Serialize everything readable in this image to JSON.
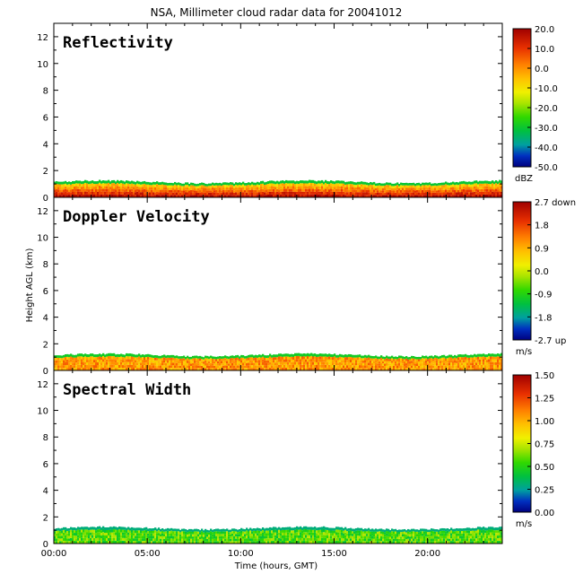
{
  "figure": {
    "title": "NSA, Millimeter cloud radar data for 20041012",
    "xlabel": "Time (hours, GMT)",
    "ylabel": "Height AGL (km)"
  },
  "chart_data": [
    {
      "type": "heatmap",
      "title": "Reflectivity",
      "ylabel": "Height AGL (km)",
      "xlabel": "",
      "x_range_hours": [
        0,
        24
      ],
      "ylim": [
        0,
        13
      ],
      "y_ticks": [
        "0",
        "2",
        "4",
        "6",
        "8",
        "10",
        "12"
      ],
      "x_ticks": [],
      "echo_top_km": 1.3,
      "colorbar": {
        "min": -50,
        "max": 20,
        "ticks": [
          "20.0",
          "10.0",
          "0.0",
          "-10.0",
          "-20.0",
          "-30.0",
          "-40.0",
          "-50.0"
        ],
        "unit": "dBZ"
      }
    },
    {
      "type": "heatmap",
      "title": "Doppler Velocity",
      "ylabel": "Height AGL (km)",
      "xlabel": "",
      "x_range_hours": [
        0,
        24
      ],
      "ylim": [
        0,
        13
      ],
      "y_ticks": [
        "0",
        "2",
        "4",
        "6",
        "8",
        "10",
        "12"
      ],
      "x_ticks": [],
      "echo_top_km": 1.3,
      "colorbar": {
        "min": -2.7,
        "max": 2.7,
        "ticks": [
          "2.7 down",
          "1.8",
          "0.9",
          "0.0",
          "-0.9",
          "-1.8",
          "-2.7 up"
        ],
        "unit": "m/s"
      }
    },
    {
      "type": "heatmap",
      "title": "Spectral Width",
      "ylabel": "Height AGL (km)",
      "xlabel": "Time (hours, GMT)",
      "x_range_hours": [
        0,
        24
      ],
      "ylim": [
        0,
        13
      ],
      "y_ticks": [
        "0",
        "2",
        "4",
        "6",
        "8",
        "10",
        "12"
      ],
      "x_ticks": [
        "00:00",
        "05:00",
        "10:00",
        "15:00",
        "20:00"
      ],
      "echo_top_km": 1.3,
      "colorbar": {
        "min": 0,
        "max": 1.5,
        "ticks": [
          "1.50",
          "1.25",
          "1.00",
          "0.75",
          "0.50",
          "0.25",
          "0.00"
        ],
        "unit": "m/s"
      }
    }
  ]
}
